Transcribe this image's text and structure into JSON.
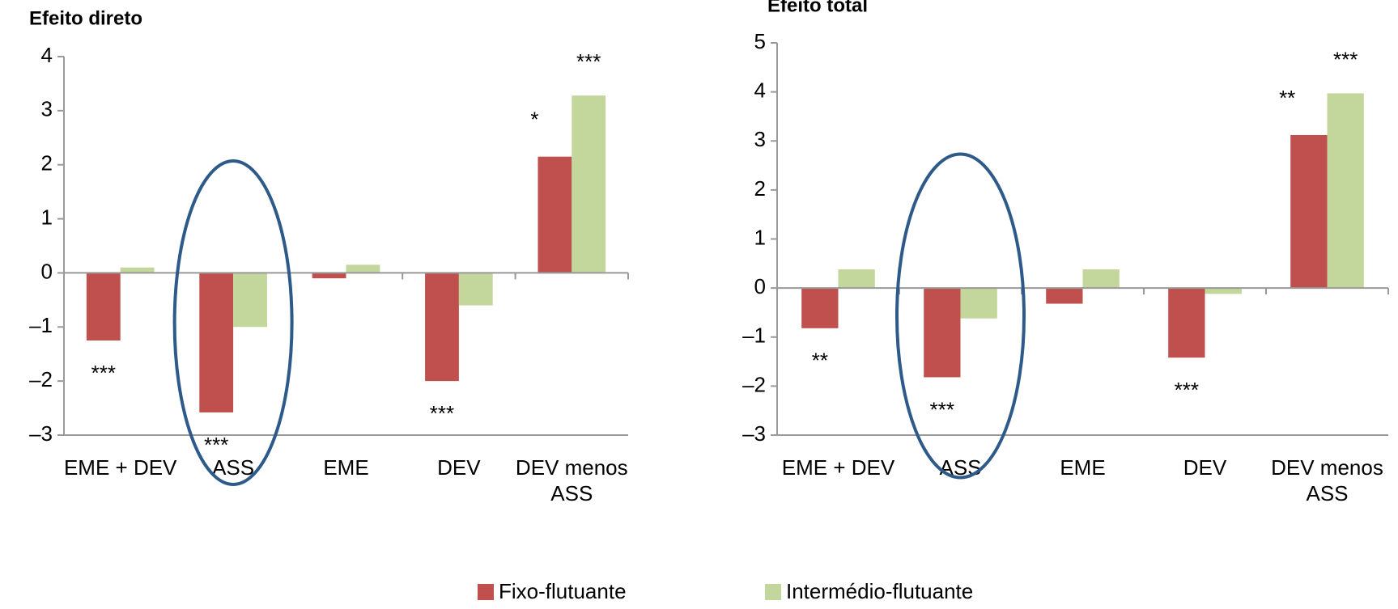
{
  "charts": [
    {
      "chart_data": {
        "type": "bar",
        "title": "Efeito direto",
        "categories": [
          "EME + DEV",
          "ASS",
          "EME",
          "DEV",
          "DEV menos ASS"
        ],
        "series": [
          {
            "name": "Fixo-flutuante",
            "color": "#c0504d",
            "values": [
              -1.25,
              -2.58,
              -0.1,
              -2.0,
              2.15
            ],
            "significance": [
              "***",
              "***",
              null,
              "***",
              "*"
            ]
          },
          {
            "name": "Intermédio-flutuante",
            "color": "#c3d69b",
            "values": [
              0.1,
              -1.0,
              0.15,
              -0.6,
              3.28
            ],
            "significance": [
              null,
              null,
              null,
              null,
              "***"
            ]
          }
        ],
        "ylim": [
          -3,
          4
        ],
        "yticks": [
          {
            "value": -3,
            "label": "–3"
          },
          {
            "value": -2,
            "label": "–2"
          },
          {
            "value": -1,
            "label": "–1"
          },
          0,
          1,
          2,
          3,
          4
        ]
      }
    },
    {
      "chart_data": {
        "type": "bar",
        "title": "Efeito total",
        "categories": [
          "EME + DEV",
          "ASS",
          "EME",
          "DEV",
          "DEV menos ASS"
        ],
        "series": [
          {
            "name": "Fixo-flutuante",
            "color": "#c0504d",
            "values": [
              -0.82,
              -1.82,
              -0.32,
              -1.42,
              3.12
            ],
            "significance": [
              "**",
              "***",
              null,
              "***",
              "**"
            ]
          },
          {
            "name": "Intermédio-flutuante",
            "color": "#c3d69b",
            "values": [
              0.38,
              -0.62,
              0.38,
              -0.12,
              3.97
            ],
            "significance": [
              null,
              null,
              null,
              null,
              "***"
            ]
          }
        ],
        "ylim": [
          -3,
          5
        ],
        "yticks": [
          {
            "value": -3,
            "label": "–3"
          },
          {
            "value": -2,
            "label": "–2"
          },
          {
            "value": -1,
            "label": "–1"
          },
          0,
          1,
          2,
          3,
          4,
          5
        ]
      }
    }
  ]
}
